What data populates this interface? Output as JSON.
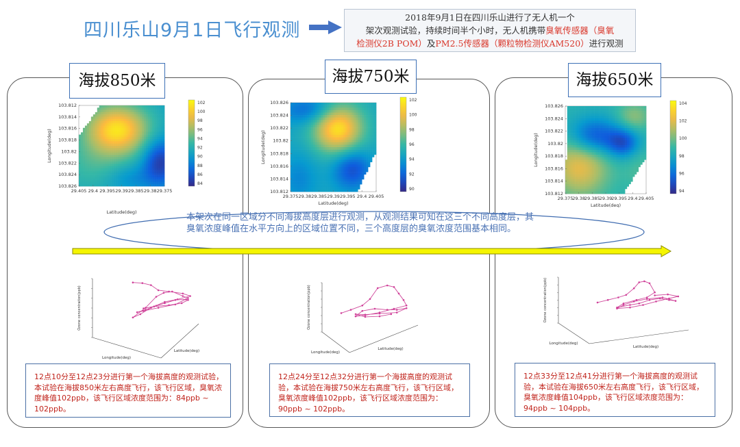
{
  "header": {
    "title": "四川乐山9月1日飞行观测",
    "intro_lines": [
      {
        "parts": [
          {
            "text": "2018年9月1日在四川乐山进行了无人机一个",
            "red": false
          }
        ]
      },
      {
        "parts": [
          {
            "text": "架次观测试验，持续时间半个小时，无人机携带",
            "red": false
          },
          {
            "text": "臭氧传感器（臭氧",
            "red": true
          }
        ]
      },
      {
        "parts": [
          {
            "text": "检测仪2B POM）",
            "red": true
          },
          {
            "text": "及",
            "red": false
          },
          {
            "text": "PM2.5传感器（颗粒物检测仪AM520）",
            "red": true
          },
          {
            "text": "进行观测",
            "red": false
          }
        ]
      }
    ]
  },
  "summary_text": "本架次在同一区域分不同海拔高度层进行观测，从观测结果可知在这三个不同高度层，其臭氧浓度峰值在水平方向上的区域位置不同，三个高度层的臭氧浓度范围基本相同。",
  "chart_data": [
    {
      "type": "heatmap",
      "title": "海拔850米",
      "xlabel": "Latitude(deg)",
      "ylabel": "Longitude(deg)",
      "x_ticks": [
        "29.405",
        "29.4",
        "29.395",
        "29.39",
        "29.385",
        "29.38",
        "29.375"
      ],
      "y_ticks": [
        "103.812",
        "103.814",
        "103.816",
        "103.818",
        "103.82",
        "103.822",
        "103.824",
        "103.826"
      ],
      "colorbar_ticks": [
        "102",
        "100",
        "98",
        "96",
        "94",
        "92",
        "90",
        "88",
        "86",
        "84"
      ],
      "value_range": [
        84,
        102
      ],
      "line3d": {
        "zlabel": "Ozone concentration(ppb)",
        "xlabel": "Longitude(deg)",
        "ylabel": "Latitude(deg)"
      },
      "caption": "12点10分至12点23分进行第一个海拔高度的观测试验，本试验在海拔850米左右高度飞行，该飞行区域，臭氧浓度峰值102ppb，该飞行区域浓度范围为：84ppb ~ 102ppb。"
    },
    {
      "type": "heatmap",
      "title": "海拔750米",
      "xlabel": "Latitude(deg)",
      "ylabel": "Longitude(deg)",
      "x_ticks": [
        "29.375",
        "29.38",
        "29.385",
        "29.39",
        "29.395",
        "29.4",
        "29.405"
      ],
      "y_ticks": [
        "103.826",
        "103.824",
        "103.822",
        "103.82",
        "103.818",
        "103.816",
        "103.814",
        "103.812"
      ],
      "colorbar_ticks": [
        "102",
        "100",
        "98",
        "96",
        "94",
        "92",
        "90"
      ],
      "value_range": [
        90,
        102
      ],
      "line3d": {
        "zlabel": "Ozone concentration(ppb)",
        "xlabel": "Longitude(deg)",
        "ylabel": "Latitude(deg)"
      },
      "caption": "12点24分至12点32分进行第一个海拔高度的观测试验，本试验在海拔750米左右高度飞行，该飞行区域，臭氧浓度峰值102ppb，该飞行区域浓度范围为：90ppb ~ 102ppb。"
    },
    {
      "type": "heatmap",
      "title": "海拔650米",
      "xlabel": "Latitude(deg)",
      "ylabel": "Longitude(deg)",
      "x_ticks": [
        "29.375",
        "29.38",
        "29.385",
        "29.39",
        "29.395",
        "29.4",
        "29.405"
      ],
      "y_ticks": [
        "103.826",
        "103.824",
        "103.822",
        "103.82",
        "103.818",
        "103.816",
        "103.814",
        "103.812"
      ],
      "colorbar_ticks": [
        "104",
        "102",
        "100",
        "98",
        "96",
        "94"
      ],
      "value_range": [
        94,
        104
      ],
      "line3d": {
        "zlabel": "Ozone concentration(ppb)",
        "xlabel": "Longitude(deg)",
        "ylabel": "Latitude(deg)"
      },
      "caption": "12点33分至12点41分进行第一个海拔高度的观测试验，本试验在海拔650米左右高度飞行，该飞行区域，臭氧浓度峰值104ppb，该飞行区域浓度范围为：94ppb ~ 104ppb。"
    }
  ]
}
